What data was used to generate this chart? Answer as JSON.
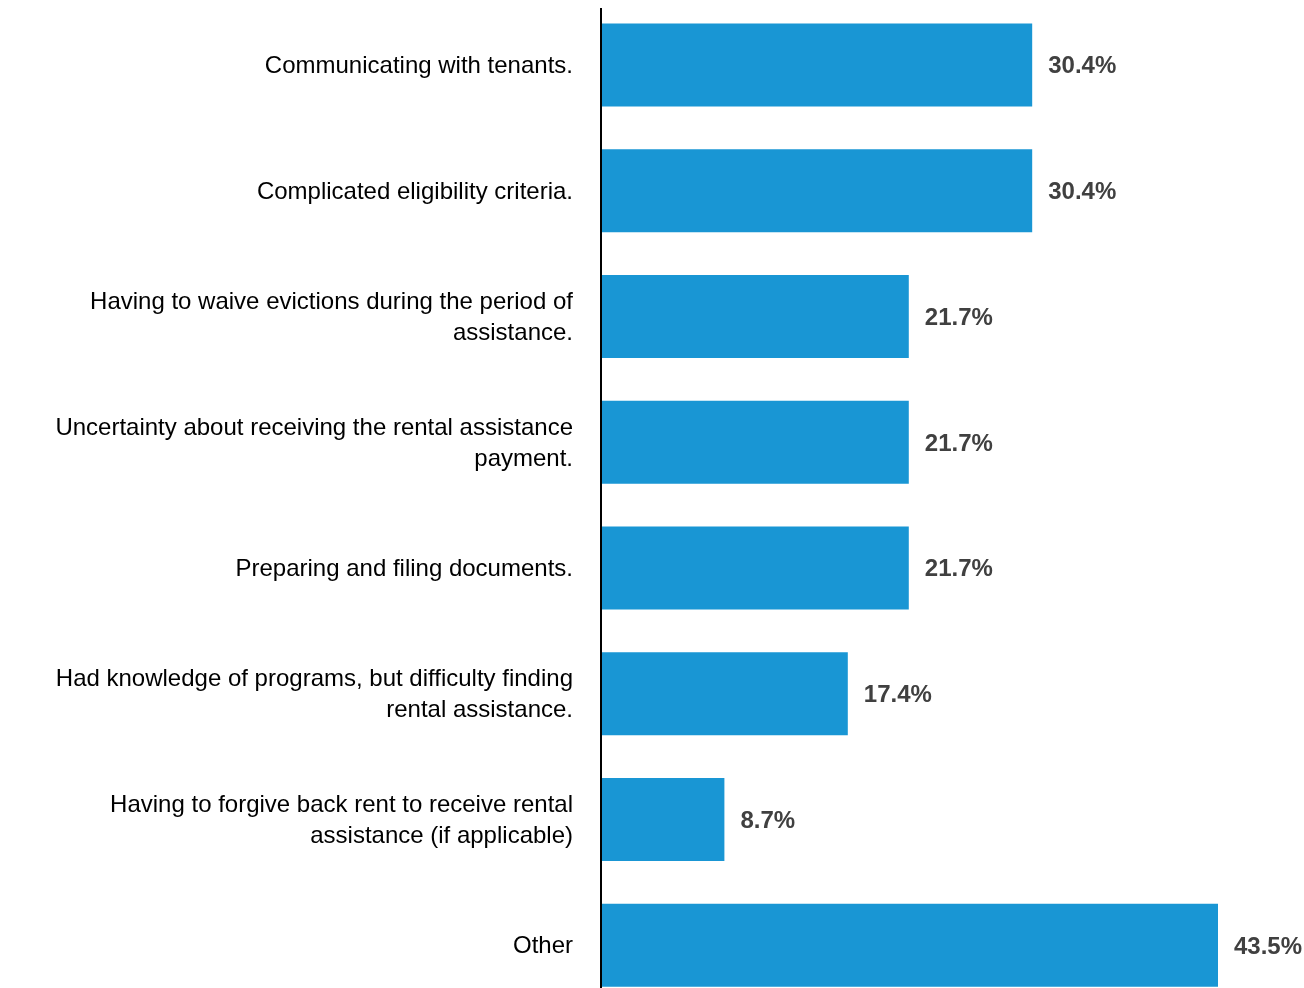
{
  "chart_data": {
    "type": "bar",
    "orientation": "horizontal",
    "categories": [
      "Communicating with tenants.",
      "Complicated eligibility criteria.",
      "Having to waive evictions during the period of assistance.",
      "Uncertainty about receiving the rental assistance payment.",
      "Preparing and filing documents.",
      "Had knowledge of programs, but difficulty finding rental assistance.",
      "Having to forgive back rent to receive rental assistance (if applicable)",
      "Other"
    ],
    "values": [
      30.4,
      30.4,
      21.7,
      21.7,
      21.7,
      17.4,
      8.7,
      43.5
    ],
    "value_labels": [
      "30.4%",
      "30.4%",
      "21.7%",
      "21.7%",
      "21.7%",
      "17.4%",
      "8.7%",
      "43.5%"
    ],
    "color": "#1996d4",
    "grid": false,
    "legend": false
  }
}
